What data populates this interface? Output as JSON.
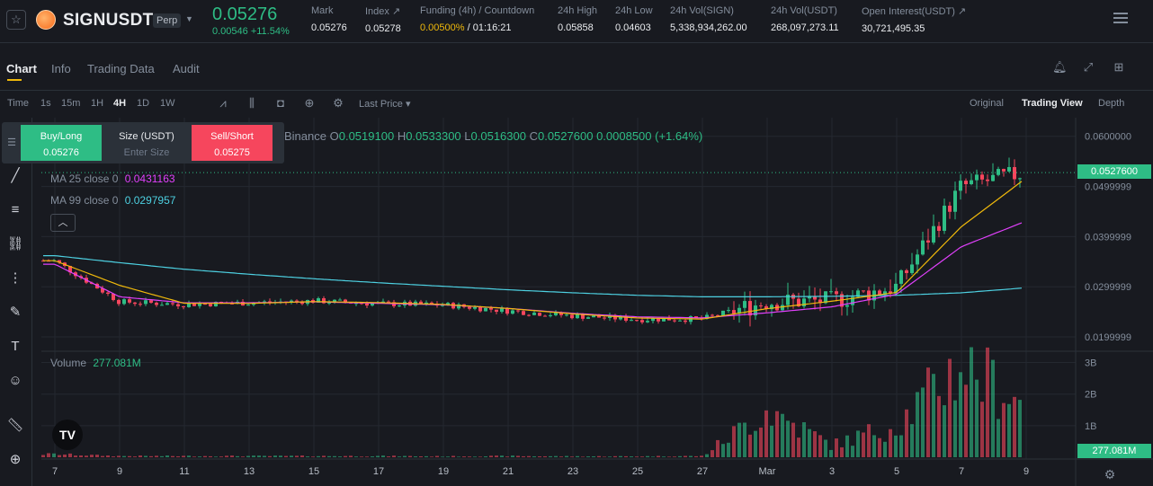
{
  "header": {
    "symbol": "SIGNUSDT",
    "contract_type": "Perp",
    "last_price": "0.05276",
    "change": "0.00546 +11.54%",
    "stats": [
      {
        "label": "Mark",
        "value": "0.05276"
      },
      {
        "label": "Index ↗",
        "value": "0.05278"
      },
      {
        "label": "Funding (4h) / Countdown",
        "value_funding": "0.00500%",
        "value_countdown": " / 01:16:21"
      },
      {
        "label": "24h High",
        "value": "0.05858"
      },
      {
        "label": "24h Low",
        "value": "0.04603"
      },
      {
        "label": "24h Vol(SIGN)",
        "value": "5,338,934,262.00"
      },
      {
        "label": "24h Vol(USDT)",
        "value": "268,097,273.11"
      },
      {
        "label": "Open Interest(USDT) ↗",
        "value": "30,721,495.35"
      }
    ]
  },
  "tabs": [
    "Chart",
    "Info",
    "Trading Data",
    "Audit"
  ],
  "toolbar": {
    "intervals": [
      "Time",
      "1s",
      "15m",
      "1H",
      "4H",
      "1D",
      "1W"
    ],
    "active_interval": "4H",
    "price_type": "Last Price",
    "views": [
      "Original",
      "Trading View",
      "Depth"
    ],
    "active_view": "Trading View"
  },
  "order_panel": {
    "buy_label": "Buy/Long",
    "buy_price": "0.05276",
    "size_label": "Size (USDT)",
    "size_placeholder": "Enter Size",
    "sell_label": "Sell/Short",
    "sell_price": "0.05275"
  },
  "legend": {
    "exchange": "Binance",
    "ohlc": [
      {
        "k": "O",
        "v": "0.0519100"
      },
      {
        "k": "H",
        "v": "0.0533300"
      },
      {
        "k": "L",
        "v": "0.0516300"
      },
      {
        "k": "C",
        "v": "0.0527600"
      }
    ],
    "change": "0.0008500 (+1.64%)",
    "ma25_label": "MA 25 close 0",
    "ma25_value": "0.0431163",
    "ma99_label": "MA 99 close 0",
    "ma99_value": "0.0297957",
    "volume_label": "Volume",
    "volume_value": "277.081M"
  },
  "price_axis": [
    "0.0600000",
    "0.0499999",
    "0.0399999",
    "0.0299999",
    "0.0199999"
  ],
  "last_price_tag": "0.0527600",
  "volume_axis": [
    "3B",
    "2B",
    "1B"
  ],
  "volume_tag": "277.081M",
  "time_axis": [
    "7",
    "9",
    "11",
    "13",
    "15",
    "17",
    "19",
    "21",
    "23",
    "25",
    "27",
    "Mar",
    "3",
    "5",
    "7",
    "9"
  ],
  "colors": {
    "up": "#2ebd85",
    "down": "#f6465d",
    "ma25": "#e040fb",
    "ma99": "#4dd0e1",
    "ma7": "#f0b90b",
    "accent": "#f0b90b"
  },
  "chart_data": {
    "type": "candlestick",
    "interval": "4H",
    "x": [
      "7",
      "9",
      "11",
      "13",
      "15",
      "17",
      "19",
      "21",
      "23",
      "25",
      "27",
      "Mar",
      "3",
      "5",
      "7",
      "9"
    ],
    "close_approx": [
      0.0352,
      0.027,
      0.0265,
      0.0268,
      0.0272,
      0.0266,
      0.0264,
      0.0252,
      0.0242,
      0.0235,
      0.0236,
      0.027,
      0.0272,
      0.03,
      0.05,
      0.0528
    ],
    "ma25_approx": [
      0.0345,
      0.028,
      0.0268,
      0.0268,
      0.027,
      0.0267,
      0.0264,
      0.0257,
      0.0247,
      0.024,
      0.0238,
      0.0248,
      0.026,
      0.0285,
      0.038,
      0.0431
    ],
    "ma99_approx": [
      0.0362,
      0.0348,
      0.0335,
      0.0325,
      0.0316,
      0.0308,
      0.0301,
      0.0294,
      0.0288,
      0.0283,
      0.028,
      0.028,
      0.0281,
      0.0283,
      0.0288,
      0.0298
    ],
    "volume_approx_B": [
      0.1,
      0.04,
      0.04,
      0.04,
      0.04,
      0.04,
      0.03,
      0.04,
      0.03,
      0.03,
      0.04,
      1.6,
      0.4,
      1.1,
      3.1,
      1.8
    ],
    "ylim": [
      0.0175,
      0.063
    ],
    "volume_ylim_B": [
      0,
      3.3
    ]
  }
}
